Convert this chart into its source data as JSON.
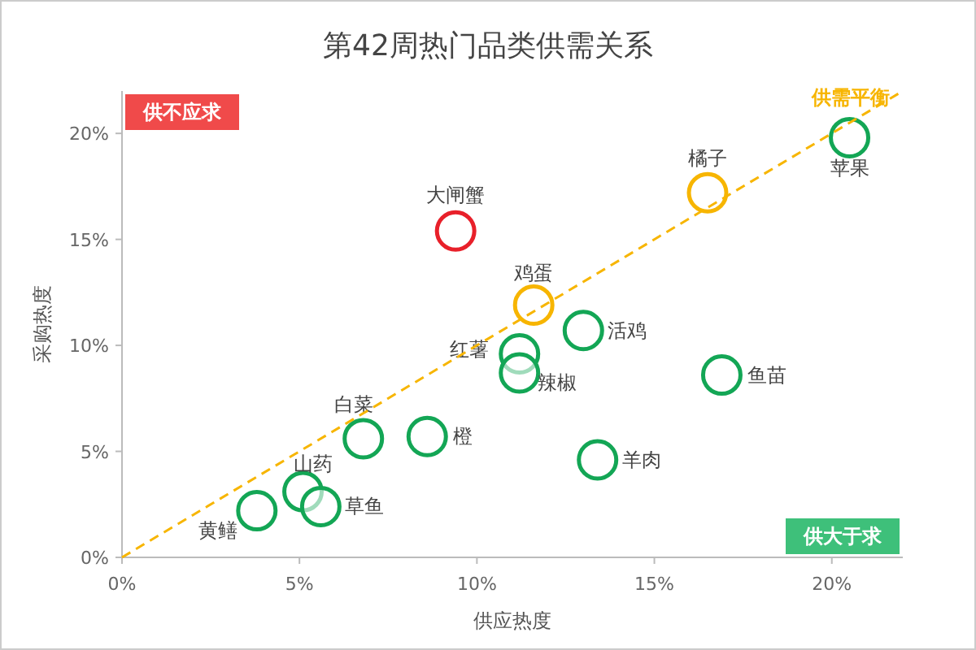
{
  "chart_data": {
    "type": "scatter",
    "title": "第42周热门品类供需关系",
    "xlabel": "供应热度",
    "ylabel": "采购热度",
    "xlim": [
      0,
      22
    ],
    "ylim": [
      0,
      22
    ],
    "xticks": [
      {
        "value": 0,
        "label": "0%"
      },
      {
        "value": 5,
        "label": "5%"
      },
      {
        "value": 10,
        "label": "10%"
      },
      {
        "value": 15,
        "label": "15%"
      },
      {
        "value": 20,
        "label": "20%"
      }
    ],
    "yticks": [
      {
        "value": 0,
        "label": "0%"
      },
      {
        "value": 5,
        "label": "5%"
      },
      {
        "value": 10,
        "label": "10%"
      },
      {
        "value": 15,
        "label": "15%"
      },
      {
        "value": 20,
        "label": "20%"
      }
    ],
    "grid": false,
    "annotations": [
      "供不应求",
      "供大于求"
    ],
    "series": [
      {
        "marker": "circle",
        "x": [
          20.5,
          16.5,
          9.4,
          11.6,
          13.0,
          11.2,
          11.2,
          16.9,
          6.8,
          8.6,
          13.4,
          5.1,
          5.6,
          3.8
        ],
        "values": [
          19.8,
          17.2,
          15.4,
          11.9,
          10.7,
          9.6,
          8.7,
          8.6,
          5.6,
          5.7,
          4.6,
          3.1,
          2.4,
          2.2
        ],
        "colors": [
          "#13a655",
          "#f7b500",
          "#e8202a",
          "#f7b500",
          "#13a655",
          "#13a655",
          "#13a655",
          "#13a655",
          "#13a655",
          "#13a655",
          "#13a655",
          "#13a655",
          "#13a655",
          "#13a655"
        ],
        "value_labels": [
          "苹果",
          "橘子",
          "大闸蟹",
          "鸡蛋",
          "活鸡",
          "红薯",
          "辣椒",
          "鱼苗",
          "白菜",
          "橙",
          "羊肉",
          "山药",
          "草鱼",
          "黄鳝"
        ]
      },
      {
        "type": "line",
        "name": "供需平衡",
        "color": "#f7b500",
        "line_style": "dashed",
        "x": [
          0,
          22
        ],
        "values": [
          0,
          22
        ]
      }
    ]
  }
}
